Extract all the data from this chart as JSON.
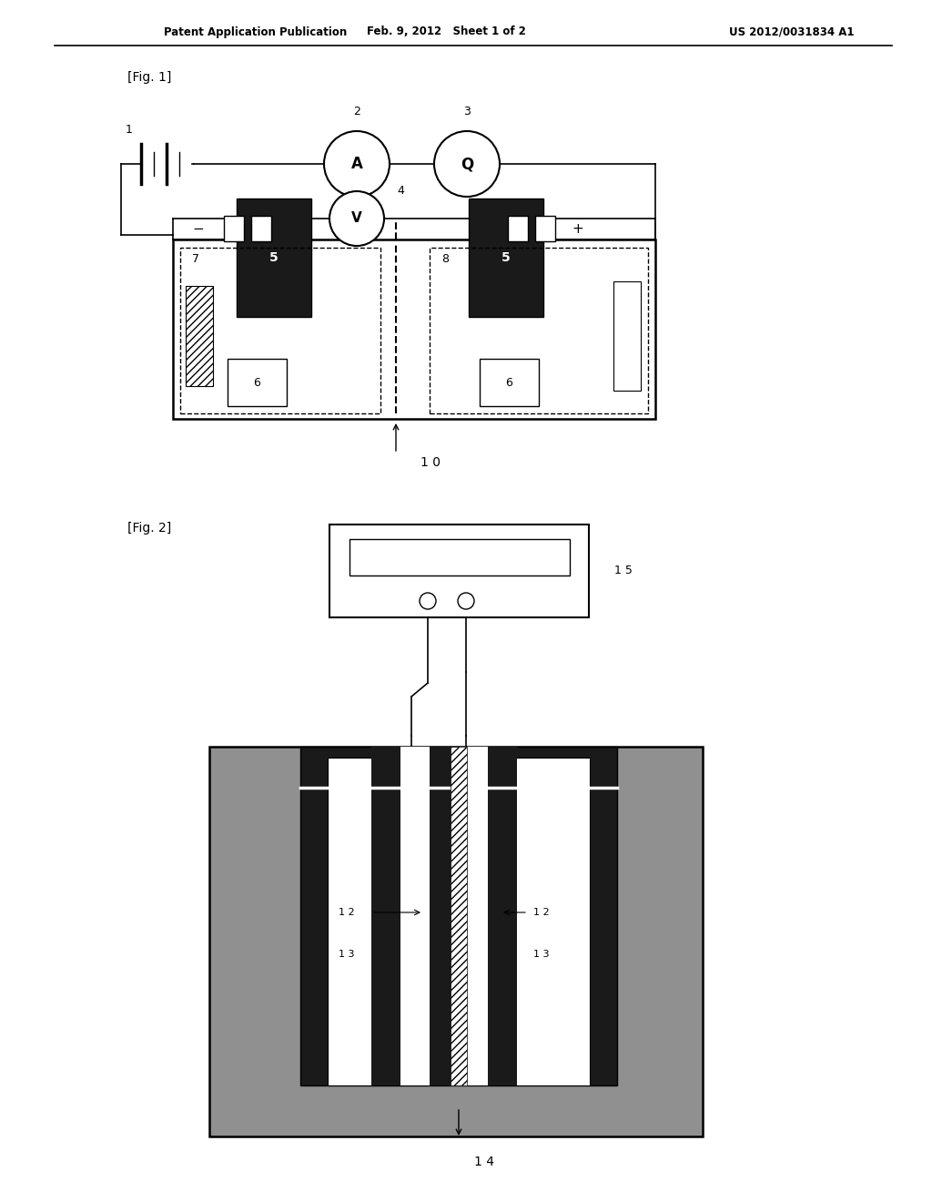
{
  "header_left": "Patent Application Publication",
  "header_mid": "Feb. 9, 2012   Sheet 1 of 2",
  "header_right": "US 2012/0031834 A1",
  "fig1_label": "[Fig. 1]",
  "fig2_label": "[Fig. 2]",
  "bg_color": "#ffffff",
  "dark_fill": "#1a1a1a",
  "gray_fill": "#999999",
  "label_10": "1 0",
  "label_14": "1 4",
  "label_15": "1 5"
}
